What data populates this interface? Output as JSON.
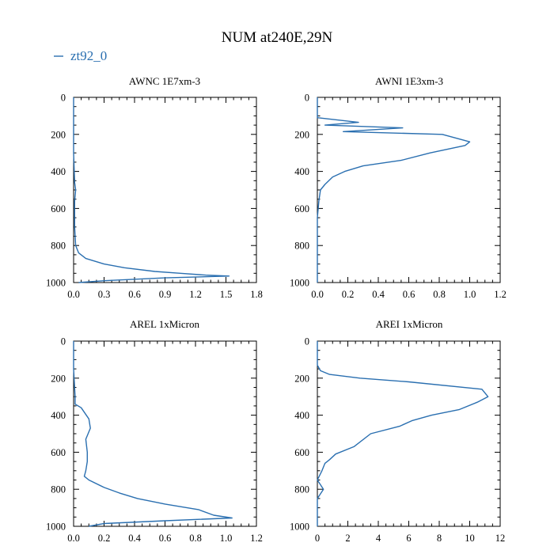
{
  "title": "NUM at240E,29N",
  "legend": {
    "label": "zt92_0",
    "color": "#2a6fb0"
  },
  "chart_data": [
    {
      "type": "line",
      "title": "AWNC  1E7xm-3",
      "xticks": [
        "0.0",
        "0.3",
        "0.6",
        "0.9",
        "1.2",
        "1.5",
        "1.8"
      ],
      "yticks": [
        "0",
        "200",
        "400",
        "600",
        "800",
        "1000"
      ],
      "xlim": [
        0,
        1.8
      ],
      "ylim": [
        1000,
        0
      ],
      "series": [
        {
          "name": "zt92_0",
          "x": [
            0,
            0,
            0,
            0.01,
            0.02,
            0.01,
            0.01,
            0.01,
            0.02,
            0.05,
            0.12,
            0.3,
            0.5,
            0.8,
            1.05,
            1.3,
            1.53,
            0.9,
            0.3,
            0.05
          ],
          "y": [
            0,
            100,
            300,
            460,
            500,
            560,
            620,
            700,
            800,
            840,
            870,
            900,
            920,
            940,
            950,
            960,
            965,
            975,
            990,
            1000
          ]
        }
      ]
    },
    {
      "type": "line",
      "title": "AWNI  1E3xm-3",
      "xticks": [
        "0.0",
        "0.2",
        "0.4",
        "0.6",
        "0.8",
        "1.0",
        "1.2"
      ],
      "yticks": [
        "0",
        "200",
        "400",
        "600",
        "800",
        "1000"
      ],
      "xlim": [
        0,
        1.2
      ],
      "ylim": [
        1000,
        0
      ],
      "series": [
        {
          "name": "zt92_0",
          "x": [
            0,
            0,
            0.27,
            0.05,
            0.56,
            0.17,
            0.82,
            1.0,
            0.97,
            0.74,
            0.55,
            0.3,
            0.18,
            0.1,
            0.05,
            0.02,
            0.01,
            0,
            0,
            0
          ],
          "y": [
            0,
            110,
            135,
            150,
            165,
            185,
            200,
            240,
            260,
            300,
            340,
            370,
            400,
            430,
            470,
            500,
            560,
            650,
            800,
            1000
          ]
        }
      ]
    },
    {
      "type": "line",
      "title": "AREL  1xMicron",
      "xticks": [
        "0.0",
        "0.2",
        "0.4",
        "0.6",
        "0.8",
        "1.0",
        "1.2"
      ],
      "yticks": [
        "0",
        "200",
        "400",
        "600",
        "800",
        "1000"
      ],
      "xlim": [
        0,
        1.2
      ],
      "ylim": [
        1000,
        0
      ],
      "series": [
        {
          "name": "zt92_0",
          "x": [
            0,
            0,
            0.01,
            0.01,
            0.05,
            0.1,
            0.11,
            0.08,
            0.09,
            0.09,
            0.08,
            0.07,
            0.1,
            0.2,
            0.3,
            0.42,
            0.6,
            0.82,
            0.92,
            1.04,
            0.6,
            0.2,
            0.1
          ],
          "y": [
            0,
            150,
            300,
            340,
            360,
            420,
            470,
            530,
            600,
            650,
            700,
            730,
            750,
            790,
            820,
            850,
            880,
            910,
            940,
            955,
            970,
            985,
            1000
          ]
        }
      ]
    },
    {
      "type": "line",
      "title": "AREI  1xMicron",
      "xticks": [
        "0",
        "2",
        "4",
        "6",
        "8",
        "10",
        "12"
      ],
      "yticks": [
        "0",
        "200",
        "400",
        "600",
        "800",
        "1000"
      ],
      "xlim": [
        0,
        12
      ],
      "ylim": [
        1000,
        0
      ],
      "series": [
        {
          "name": "zt92_0",
          "x": [
            0,
            0,
            0.2,
            0.8,
            2.8,
            6,
            10.8,
            11.2,
            10.5,
            9.3,
            7.5,
            6.2,
            5.4,
            3.5,
            2.4,
            1.2,
            0.8,
            0.5,
            0.3,
            0,
            0.4,
            0,
            0
          ],
          "y": [
            0,
            130,
            160,
            180,
            200,
            220,
            260,
            300,
            330,
            370,
            400,
            430,
            460,
            500,
            570,
            610,
            640,
            660,
            700,
            750,
            800,
            850,
            1000
          ]
        }
      ]
    }
  ]
}
